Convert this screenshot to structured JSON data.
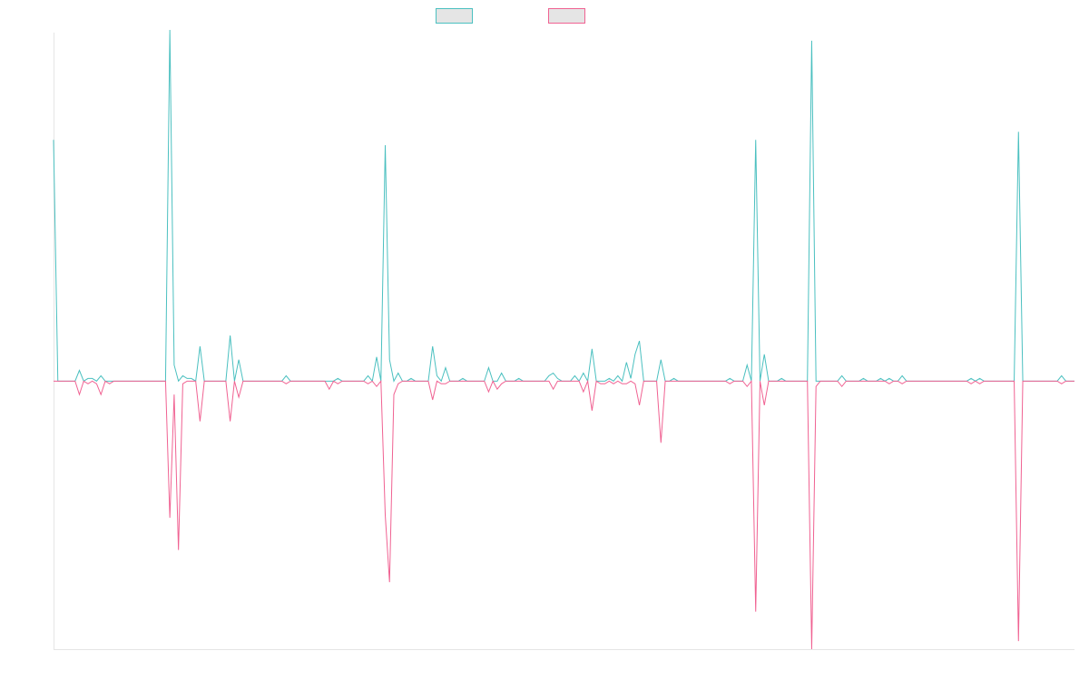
{
  "chart_data": {
    "type": "line",
    "title": "",
    "xlabel": "",
    "ylabel": "",
    "legend_position": "top-center",
    "grid": false,
    "axes_visible": false,
    "ylim": [
      -1,
      1.3
    ],
    "colors": {
      "series_a": "#4bc0c0",
      "series_b": "#f06292",
      "legend_fill": "#e5e5e5",
      "axis": "#e5e5e5"
    },
    "series": [
      {
        "name": "",
        "color": "#4bc0c0",
        "values": [
          0.9,
          0,
          0,
          0,
          0,
          0,
          0.04,
          0,
          0.01,
          0.01,
          0,
          0.02,
          0,
          0,
          0,
          0,
          0,
          0,
          0,
          0,
          0,
          0,
          0,
          0,
          0,
          0,
          0,
          1.31,
          0.06,
          0,
          0.02,
          0.01,
          0.01,
          0,
          0.13,
          0,
          0,
          0,
          0,
          0,
          0,
          0.17,
          0,
          0.08,
          0,
          0,
          0,
          0,
          0,
          0,
          0,
          0,
          0,
          0,
          0.02,
          0,
          0,
          0,
          0,
          0,
          0,
          0,
          0,
          0,
          0,
          0,
          0.01,
          0,
          0,
          0,
          0,
          0,
          0,
          0.02,
          0,
          0.09,
          0,
          0.88,
          0.08,
          0,
          0.03,
          0,
          0,
          0.01,
          0,
          0,
          0,
          0,
          0.13,
          0.02,
          0,
          0.05,
          0,
          0,
          0,
          0.01,
          0,
          0,
          0,
          0,
          0,
          0.05,
          0,
          0,
          0.03,
          0,
          0,
          0,
          0.01,
          0,
          0,
          0,
          0,
          0,
          0,
          0.02,
          0.03,
          0.01,
          0,
          0,
          0,
          0.02,
          0,
          0.03,
          0,
          0.12,
          0,
          0,
          0,
          0.01,
          0,
          0.02,
          0,
          0.07,
          0.01,
          0.1,
          0.15,
          0,
          0,
          0,
          0,
          0.08,
          0,
          0,
          0.01,
          0,
          0,
          0,
          0,
          0,
          0,
          0,
          0,
          0,
          0,
          0,
          0,
          0.01,
          0,
          0,
          0,
          0.06,
          0,
          0.9,
          0,
          0.1,
          0,
          0,
          0,
          0.01,
          0,
          0,
          0,
          0,
          0,
          0,
          1.27,
          0,
          0,
          0,
          0,
          0,
          0,
          0.02,
          0,
          0,
          0,
          0,
          0.01,
          0,
          0,
          0,
          0.01,
          0,
          0.01,
          0,
          0,
          0.02,
          0,
          0,
          0,
          0,
          0,
          0,
          0,
          0,
          0,
          0,
          0,
          0,
          0,
          0,
          0,
          0.01,
          0,
          0.01,
          0,
          0,
          0,
          0,
          0,
          0,
          0,
          0,
          0.93,
          0,
          0,
          0,
          0,
          0,
          0,
          0,
          0,
          0,
          0.02,
          0,
          0,
          0
        ]
      },
      {
        "name": "",
        "color": "#f06292",
        "values": [
          0,
          0,
          0,
          0,
          0,
          0,
          -0.05,
          0,
          -0.01,
          0,
          -0.01,
          -0.05,
          0,
          -0.01,
          0,
          0,
          0,
          0,
          0,
          0,
          0,
          0,
          0,
          0,
          0,
          0,
          0,
          -0.51,
          -0.05,
          -0.63,
          -0.01,
          0,
          0,
          0,
          -0.15,
          0,
          0,
          0,
          0,
          0,
          0,
          -0.15,
          0,
          -0.06,
          0,
          0,
          0,
          0,
          0,
          0,
          0,
          0,
          0,
          0,
          -0.01,
          0,
          0,
          0,
          0,
          0,
          0,
          0,
          0,
          0,
          -0.03,
          0,
          -0.01,
          0,
          0,
          0,
          0,
          0,
          0,
          -0.01,
          0,
          -0.02,
          0,
          -0.5,
          -0.75,
          -0.05,
          -0.01,
          0,
          0,
          0,
          0,
          0,
          0,
          0,
          -0.07,
          0,
          -0.01,
          -0.01,
          0,
          0,
          0,
          0,
          0,
          0,
          0,
          0,
          0,
          -0.04,
          0,
          -0.03,
          -0.01,
          0,
          0,
          0,
          0,
          0,
          0,
          0,
          0,
          0,
          0,
          0,
          -0.03,
          0,
          0,
          0,
          0,
          0,
          0,
          -0.04,
          0,
          -0.11,
          0,
          -0.01,
          -0.01,
          0,
          -0.01,
          0,
          -0.01,
          -0.01,
          0,
          -0.01,
          -0.09,
          0,
          0,
          0,
          0,
          -0.23,
          0,
          0,
          0,
          0,
          0,
          0,
          0,
          0,
          0,
          0,
          0,
          0,
          0,
          0,
          0,
          -0.01,
          0,
          0,
          0,
          -0.02,
          0,
          -0.86,
          0,
          -0.09,
          0,
          0,
          0,
          0,
          0,
          0,
          0,
          0,
          0,
          0,
          -1,
          -0.02,
          0,
          0,
          0,
          0,
          0,
          -0.02,
          0,
          0,
          0,
          0,
          0,
          0,
          0,
          0,
          0,
          0,
          -0.01,
          0,
          0,
          -0.01,
          0,
          0,
          0,
          0,
          0,
          0,
          0,
          0,
          0,
          0,
          0,
          0,
          0,
          0,
          0,
          -0.01,
          0,
          -0.01,
          0,
          0,
          0,
          0,
          0,
          0,
          0,
          0,
          -0.97,
          0,
          0,
          0,
          0,
          0,
          0,
          0,
          0,
          0,
          -0.01,
          0,
          0,
          0
        ]
      }
    ]
  }
}
